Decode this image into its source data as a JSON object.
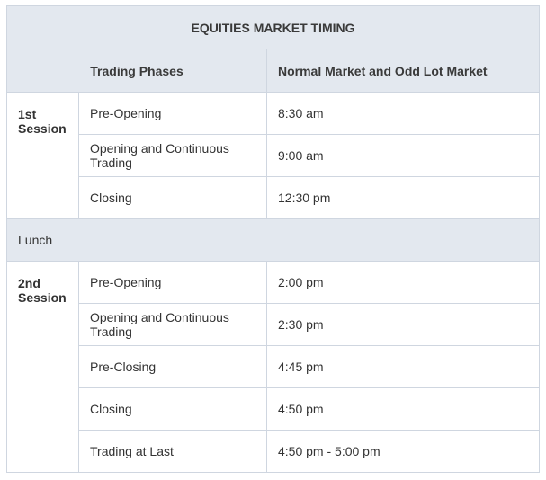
{
  "table": {
    "title": "EQUITIES MARKET TIMING",
    "headers": {
      "phases": "Trading Phases",
      "time": "Normal Market and Odd Lot Market"
    },
    "session1": {
      "label": "1st Session",
      "rows": [
        {
          "phase": "Pre-Opening",
          "time": "8:30 am"
        },
        {
          "phase": "Opening and Continuous Trading",
          "time": "9:00 am"
        },
        {
          "phase": "Closing",
          "time": "12:30 pm"
        }
      ]
    },
    "lunch": {
      "label": "Lunch"
    },
    "session2": {
      "label": "2nd Session",
      "rows": [
        {
          "phase": "Pre-Opening",
          "time": "2:00 pm"
        },
        {
          "phase": "Opening and Continuous Trading",
          "time": "2:30 pm"
        },
        {
          "phase": "Pre-Closing",
          "time": "4:45 pm"
        },
        {
          "phase": "Closing",
          "time": "4:50 pm"
        },
        {
          "phase": "Trading at Last",
          "time": "4:50 pm - 5:00 pm"
        }
      ]
    }
  },
  "colors": {
    "header_bg": "#e3e8ef",
    "border": "#cfd6e0",
    "text": "#333333"
  }
}
